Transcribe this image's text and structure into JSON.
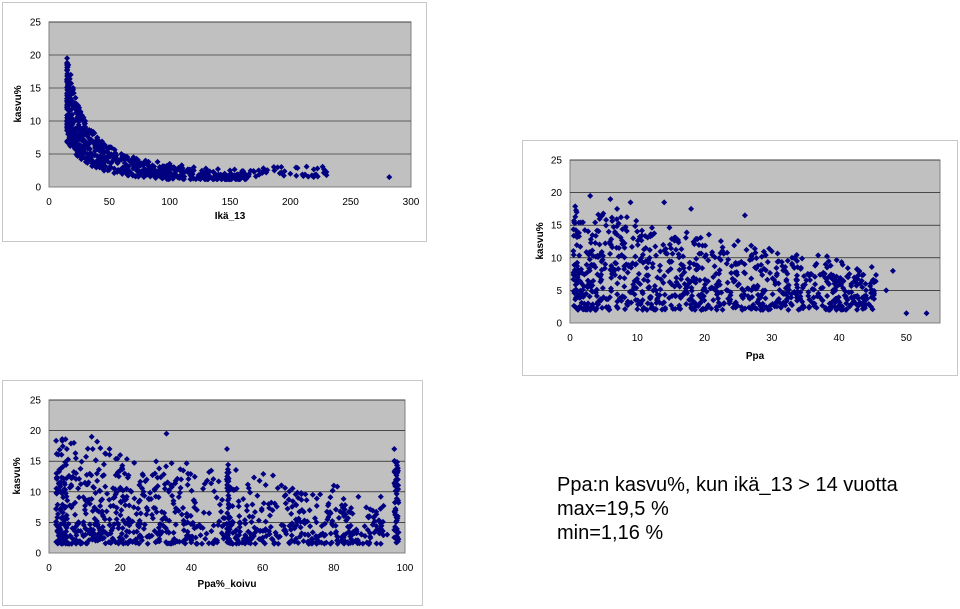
{
  "chart_data": [
    {
      "type": "scatter",
      "xlabel": "Ikä_13",
      "ylabel": "kasvu%",
      "xlim": [
        0,
        300
      ],
      "ylim": [
        0,
        25
      ],
      "x_ticks": [
        0,
        50,
        100,
        150,
        200,
        250,
        300
      ],
      "y_ticks": [
        0,
        5,
        10,
        15,
        20,
        25
      ],
      "grid": true,
      "marker_color": "#000080",
      "plot_bg": "#c0c0c0",
      "pattern": "decay",
      "sample_points": [
        [
          15,
          19.5
        ],
        [
          16,
          18.5
        ],
        [
          18,
          17
        ],
        [
          20,
          15
        ],
        [
          22,
          13.5
        ],
        [
          25,
          12
        ],
        [
          30,
          10
        ],
        [
          35,
          8.5
        ],
        [
          40,
          7.5
        ],
        [
          50,
          6
        ],
        [
          60,
          5
        ],
        [
          70,
          4.5
        ],
        [
          80,
          4
        ],
        [
          90,
          3.8
        ],
        [
          100,
          3.5
        ],
        [
          110,
          3.3
        ],
        [
          120,
          3
        ],
        [
          130,
          2.8
        ],
        [
          140,
          2.7
        ],
        [
          150,
          2.5
        ],
        [
          160,
          2.4
        ],
        [
          170,
          2.3
        ],
        [
          180,
          2.2
        ],
        [
          200,
          2
        ],
        [
          210,
          1.9
        ],
        [
          220,
          1.8
        ],
        [
          230,
          1.8
        ],
        [
          282,
          1.5
        ]
      ],
      "note_points": []
    },
    {
      "type": "scatter",
      "xlabel": "Ppa",
      "ylabel": "kasvu%",
      "xlim": [
        0,
        55
      ],
      "ylim": [
        0,
        25
      ],
      "x_ticks": [
        0,
        10,
        20,
        30,
        40,
        50
      ],
      "y_ticks": [
        0,
        5,
        10,
        15,
        20,
        25
      ],
      "grid": true,
      "marker_color": "#000080",
      "plot_bg": "#c0c0c0",
      "pattern": "declining-cloud",
      "sample_points": [
        [
          1,
          17
        ],
        [
          3,
          19.5
        ],
        [
          6,
          19
        ],
        [
          7,
          17.5
        ],
        [
          9,
          18.5
        ],
        [
          14,
          18.5
        ],
        [
          18,
          17.5
        ],
        [
          26,
          16.5
        ],
        [
          30,
          11
        ],
        [
          33,
          10
        ],
        [
          38,
          9
        ],
        [
          43,
          8
        ],
        [
          44,
          5
        ],
        [
          47,
          5
        ],
        [
          48,
          8
        ],
        [
          50,
          1.5
        ],
        [
          53,
          1.5
        ]
      ]
    },
    {
      "type": "scatter",
      "xlabel": "Ppa%_koivu",
      "ylabel": "kasvu%",
      "xlim": [
        0,
        100
      ],
      "ylim": [
        0,
        25
      ],
      "x_ticks": [
        0,
        20,
        40,
        60,
        80,
        100
      ],
      "y_ticks": [
        0,
        5,
        10,
        15,
        20,
        25
      ],
      "grid": true,
      "marker_color": "#000080",
      "plot_bg": "#c0c0c0",
      "pattern": "spread-cloud",
      "sample_points": [
        [
          5,
          17
        ],
        [
          7,
          18
        ],
        [
          12,
          19
        ],
        [
          17,
          17
        ],
        [
          20,
          16
        ],
        [
          33,
          19.5
        ],
        [
          50,
          17
        ],
        [
          70,
          9
        ],
        [
          80,
          11
        ],
        [
          90,
          6
        ],
        [
          95,
          3
        ],
        [
          97,
          17
        ],
        [
          98,
          12
        ]
      ]
    }
  ],
  "caption": {
    "line1": "Ppa:n kasvu%, kun ikä_13 > 14 vuotta",
    "line2": "max=19,5 %",
    "line3": "min=1,16 %"
  }
}
